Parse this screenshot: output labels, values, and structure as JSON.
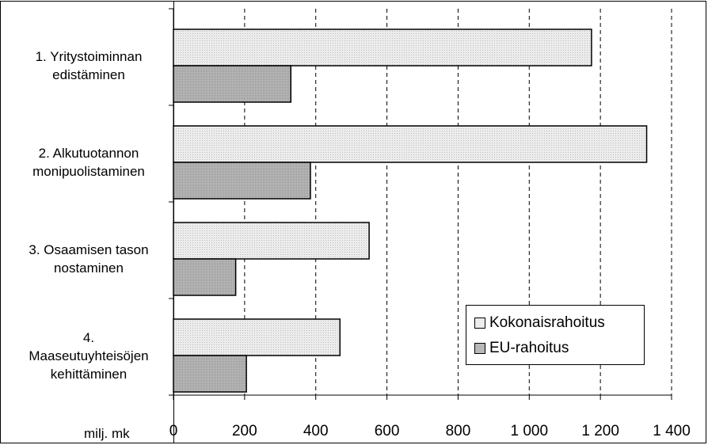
{
  "chart_data": {
    "type": "bar",
    "orientation": "horizontal",
    "categories": [
      "1. Yritystoiminnan edistäminen",
      "2. Alkutuotannon monipuolistaminen",
      "3. Osaamisen tason nostaminen",
      "4. Maaseutuyhteisöjen kehittäminen"
    ],
    "category_lines": [
      [
        "1. Yritystoiminnan",
        "edistäminen"
      ],
      [
        "2. Alkutuotannon",
        "monipuolistaminen"
      ],
      [
        "3. Osaamisen tason",
        "nostaminen"
      ],
      [
        "4.",
        "Maaseutuyhteisöjen",
        "kehittäminen"
      ]
    ],
    "series": [
      {
        "name": "Kokonaisrahoitus",
        "values": [
          1175,
          1330,
          550,
          468
        ],
        "color": "#ececec"
      },
      {
        "name": "EU-rahoitus",
        "values": [
          330,
          385,
          175,
          205
        ],
        "color": "#b8b8b8"
      }
    ],
    "xlim": [
      0,
      1400
    ],
    "xticks": [
      0,
      200,
      400,
      600,
      800,
      1000,
      1200,
      1400
    ],
    "xtick_labels": [
      "0",
      "200",
      "400",
      "600",
      "800",
      "1 000",
      "1 200",
      "1 400"
    ],
    "xlabel": "milj. mk",
    "grid": "vertical-dashed",
    "legend_position": "bottom-right"
  }
}
